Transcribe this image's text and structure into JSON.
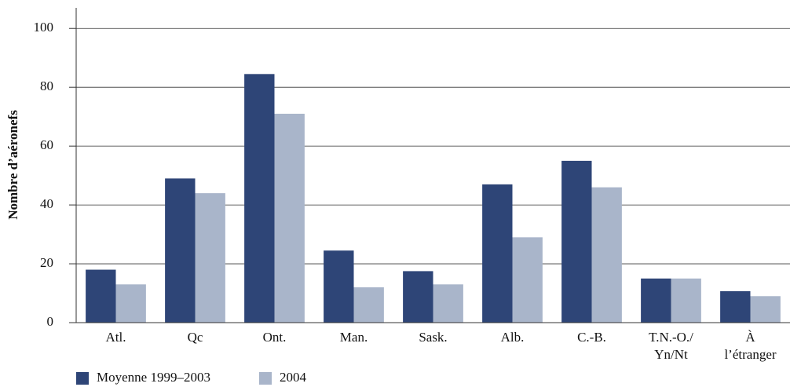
{
  "chart_data": {
    "type": "bar",
    "y_label": "Nombre d’aéronefs",
    "categories": [
      "Atl.",
      "Qc",
      "Ont.",
      "Man.",
      "Sask.",
      "Alb.",
      "C.-B.",
      "T.N.-O./\nYn/Nt",
      "À\nl’étranger"
    ],
    "series": [
      {
        "name": "Moyenne 1999–2003",
        "color": "#2e4577",
        "values": [
          18,
          49,
          84.5,
          24.5,
          17.5,
          47,
          55,
          15,
          10.7
        ]
      },
      {
        "name": "2004",
        "color": "#a9b5ca",
        "values": [
          13,
          44,
          71,
          12,
          13,
          29,
          46,
          15,
          9
        ]
      }
    ],
    "ylim": [
      0,
      107
    ],
    "yticks": [
      0,
      20,
      40,
      60,
      80,
      100
    ],
    "grid": true,
    "legend": "bottom-left"
  }
}
